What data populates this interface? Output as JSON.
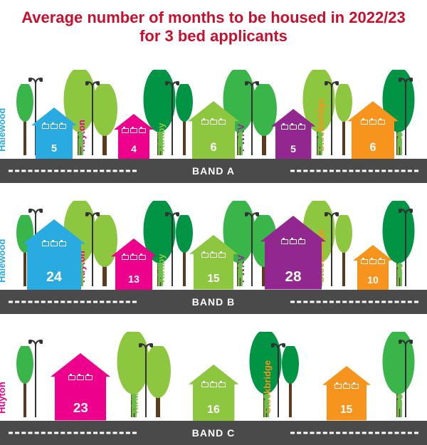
{
  "title": "Average number of months to be housed in 2022/23 for 3 bed applicants",
  "title_color": "#c8102e",
  "title_fontsize": 22,
  "road_color": "#4a4a4a",
  "lane_marking_color": "#ffffff",
  "tree_leaf_colors": [
    "#39b54a",
    "#8dc63f",
    "#009444"
  ],
  "tree_trunk_color": "#5b3a1e",
  "lamp_color": "#333333",
  "person_color": "#6abf4b",
  "locations": {
    "halewood": {
      "label": "Halewood",
      "color": "#29abe2"
    },
    "huyton": {
      "label": "Huyton",
      "color": "#ec008c"
    },
    "kirkby": {
      "label": "Kirkby",
      "color": "#8dc63f"
    },
    "pwkv": {
      "label": "PWKV",
      "color": "#92278f"
    },
    "stockbridge": {
      "label": "Stockbridge",
      "color": "#f7941d"
    }
  },
  "bands": [
    {
      "name": "BAND A",
      "houses": [
        {
          "loc": "halewood",
          "value": 5,
          "scale": 0.8
        },
        {
          "loc": "huyton",
          "value": 4,
          "scale": 0.7
        },
        {
          "loc": "kirkby",
          "value": 6,
          "scale": 0.9
        },
        {
          "loc": "pwkv",
          "value": 5,
          "scale": 0.78
        },
        {
          "loc": "stockbridge",
          "value": 6,
          "scale": 0.9
        }
      ]
    },
    {
      "name": "BAND B",
      "houses": [
        {
          "loc": "halewood",
          "value": 24,
          "scale": 1.1
        },
        {
          "loc": "huyton",
          "value": 13,
          "scale": 0.8
        },
        {
          "loc": "kirkby",
          "value": 15,
          "scale": 0.85
        },
        {
          "loc": "pwkv",
          "value": 28,
          "scale": 1.15
        },
        {
          "loc": "stockbridge",
          "value": 10,
          "scale": 0.7
        }
      ]
    },
    {
      "name": "BAND C",
      "houses": [
        {
          "loc": "huyton",
          "value": 23,
          "scale": 1.05
        },
        {
          "loc": "kirkby",
          "value": 16,
          "scale": 0.88
        },
        {
          "loc": "stockbridge",
          "value": 15,
          "scale": 0.85
        }
      ]
    }
  ],
  "base_house_width": 80,
  "base_house_height": 90,
  "bed_count": 3
}
